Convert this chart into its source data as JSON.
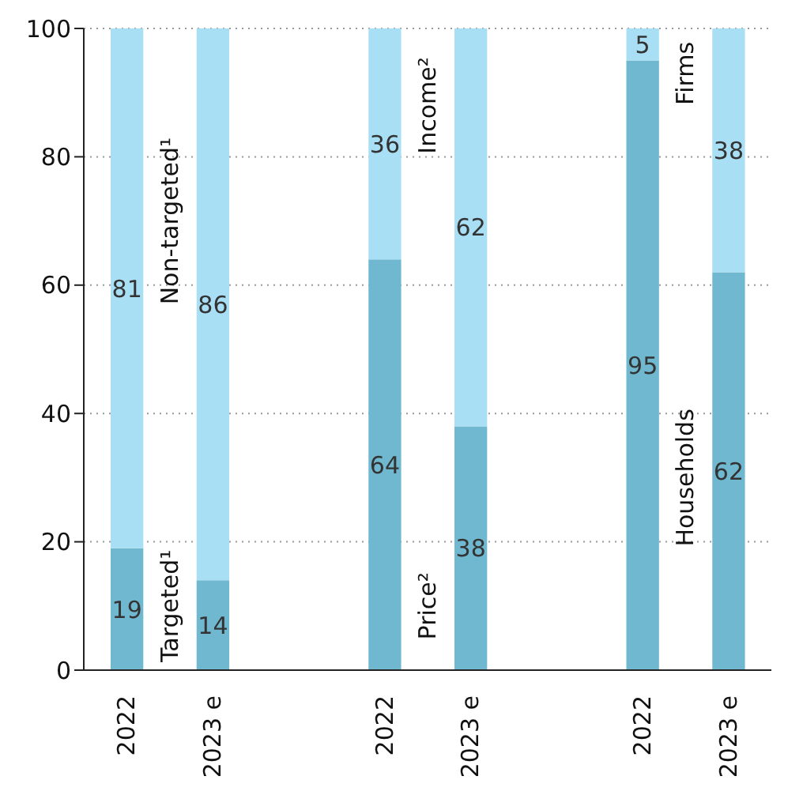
{
  "chart_data": {
    "type": "bar",
    "stacked": true,
    "categories": [
      "2022",
      "2023 e",
      null,
      "2022",
      "2023 e",
      null,
      "2022",
      "2023 e"
    ],
    "series": [
      {
        "color": "#6fb8d0",
        "values": [
          19,
          14,
          null,
          64,
          38,
          null,
          95,
          62
        ]
      },
      {
        "color": "#a8dff5",
        "values": [
          81,
          86,
          null,
          36,
          62,
          null,
          5,
          38
        ]
      }
    ],
    "ylim": [
      0,
      100
    ],
    "yticks": [
      0,
      20,
      40,
      60,
      80,
      100
    ],
    "grid": "y",
    "data_labels": true,
    "annotations": [
      "Non-targeted¹",
      "Targeted¹",
      "Income²",
      "Price²",
      "Firms",
      "Households"
    ]
  }
}
